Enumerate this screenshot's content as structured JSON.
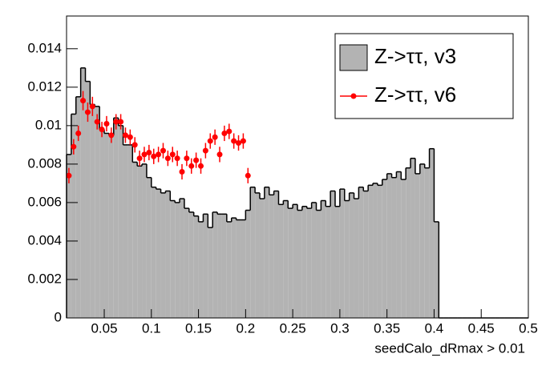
{
  "chart_data": {
    "type": "histogram",
    "x_label": "seedCalo_dRmax > 0.01",
    "bins": [
      0.01,
      0.015,
      0.02,
      0.025,
      0.03,
      0.035,
      0.04,
      0.045,
      0.05,
      0.055,
      0.06,
      0.065,
      0.07,
      0.075,
      0.08,
      0.085,
      0.09,
      0.095,
      0.1,
      0.105,
      0.11,
      0.115,
      0.12,
      0.125,
      0.13,
      0.135,
      0.14,
      0.145,
      0.15,
      0.155,
      0.16,
      0.165,
      0.17,
      0.175,
      0.18,
      0.185,
      0.19,
      0.195,
      0.2,
      0.205,
      0.21,
      0.215,
      0.22,
      0.225,
      0.23,
      0.235,
      0.24,
      0.245,
      0.25,
      0.255,
      0.26,
      0.265,
      0.27,
      0.275,
      0.28,
      0.285,
      0.29,
      0.295,
      0.3,
      0.305,
      0.31,
      0.315,
      0.32,
      0.325,
      0.33,
      0.335,
      0.34,
      0.345,
      0.35,
      0.355,
      0.36,
      0.365,
      0.37,
      0.375,
      0.38,
      0.385,
      0.39,
      0.395,
      0.4,
      0.405,
      0.41,
      0.415,
      0.42,
      0.425,
      0.43,
      0.435,
      0.44,
      0.445,
      0.45,
      0.455,
      0.46,
      0.465,
      0.47,
      0.475,
      0.48,
      0.485,
      0.49,
      0.495,
      0.5
    ],
    "series": [
      {
        "name": "Z->ττ, v3",
        "color": "#b3b3b3",
        "values": [
          0.0085,
          0.0106,
          0.0115,
          0.013,
          0.0123,
          0.0111,
          0.011,
          0.0098,
          0.0096,
          0.0095,
          0.0104,
          0.01,
          0.009,
          0.009,
          0.0081,
          0.0079,
          0.008,
          0.0073,
          0.0068,
          0.0067,
          0.0065,
          0.0066,
          0.0061,
          0.006,
          0.0062,
          0.0057,
          0.0055,
          0.0053,
          0.005,
          0.0054,
          0.0047,
          0.0055,
          0.0054,
          0.0054,
          0.005,
          0.0052,
          0.0051,
          0.0051,
          0.0056,
          0.0068,
          0.0065,
          0.0062,
          0.0068,
          0.0064,
          0.0066,
          0.0059,
          0.0061,
          0.0057,
          0.0059,
          0.0056,
          0.0058,
          0.0057,
          0.006,
          0.0056,
          0.0061,
          0.0058,
          0.0066,
          0.0058,
          0.0067,
          0.0061,
          0.0065,
          0.0062,
          0.0068,
          0.0066,
          0.0069,
          0.007,
          0.0069,
          0.0072,
          0.0075,
          0.0073,
          0.0076,
          0.0072,
          0.0078,
          0.0083,
          0.0075,
          0.008,
          0.0078,
          0.0088,
          0.005,
          0,
          0,
          0,
          0,
          0,
          0,
          0,
          0,
          0,
          0,
          0,
          0,
          0,
          0,
          0,
          0,
          0,
          0,
          0
        ]
      },
      {
        "name": "Z->ττ, v6",
        "color": "#ff0000",
        "type": "errorbar",
        "x": [
          0.0125,
          0.0175,
          0.0225,
          0.0275,
          0.0325,
          0.0375,
          0.0425,
          0.0475,
          0.0525,
          0.0575,
          0.0625,
          0.0675,
          0.0725,
          0.0775,
          0.0825,
          0.0875,
          0.0925,
          0.0975,
          0.1025,
          0.1075,
          0.1125,
          0.1175,
          0.1225,
          0.1275,
          0.1325,
          0.1375,
          0.1425,
          0.1475,
          0.1525,
          0.1575,
          0.1625,
          0.1675,
          0.1725,
          0.1775,
          0.1825,
          0.1875,
          0.1925,
          0.1975,
          0.2025
        ],
        "values": [
          0.0074,
          0.0089,
          0.0096,
          0.0113,
          0.0107,
          0.011,
          0.0102,
          0.0098,
          0.0101,
          0.0095,
          0.0102,
          0.0102,
          0.0095,
          0.0094,
          0.009,
          0.0083,
          0.0085,
          0.0086,
          0.0084,
          0.0085,
          0.0087,
          0.0083,
          0.0085,
          0.0083,
          0.0076,
          0.0083,
          0.0079,
          0.0082,
          0.0079,
          0.0087,
          0.0092,
          0.0094,
          0.0085,
          0.0096,
          0.0097,
          0.0092,
          0.0091,
          0.0092,
          0.0074
        ],
        "errors": [
          0.0004,
          0.0004,
          0.0004,
          0.0005,
          0.0005,
          0.0005,
          0.0004,
          0.0004,
          0.0004,
          0.0004,
          0.0004,
          0.0004,
          0.0004,
          0.0004,
          0.0004,
          0.0004,
          0.0004,
          0.0004,
          0.0004,
          0.0004,
          0.0004,
          0.0004,
          0.0004,
          0.0004,
          0.0004,
          0.0004,
          0.0004,
          0.0004,
          0.0004,
          0.0004,
          0.0004,
          0.0004,
          0.0004,
          0.0004,
          0.0004,
          0.0004,
          0.0004,
          0.0004,
          0.0004
        ]
      }
    ],
    "xlim": [
      0.01,
      0.5
    ],
    "ylim": [
      0,
      0.0157
    ],
    "xticks": [
      0.05,
      0.1,
      0.15,
      0.2,
      0.25,
      0.3,
      0.35,
      0.4,
      0.45,
      0.5
    ],
    "yticks": [
      0,
      0.002,
      0.004,
      0.006,
      0.008,
      0.01,
      0.012,
      0.014
    ],
    "legend": "top-right"
  }
}
